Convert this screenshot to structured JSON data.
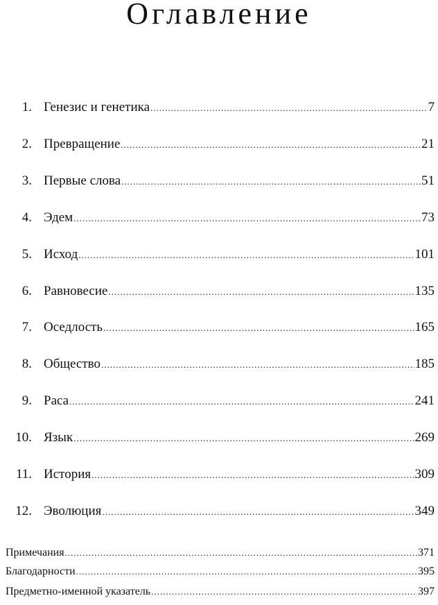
{
  "title": "Оглавление",
  "chapters": [
    {
      "num": "1.",
      "title": "Генезис и генетика",
      "page": "7"
    },
    {
      "num": "2.",
      "title": "Превращение",
      "page": "21"
    },
    {
      "num": "3.",
      "title": "Первые слова",
      "page": "51"
    },
    {
      "num": "4.",
      "title": "Эдем",
      "page": "73"
    },
    {
      "num": "5.",
      "title": "Исход",
      "page": "101"
    },
    {
      "num": "6.",
      "title": "Равновесие",
      "page": "135"
    },
    {
      "num": "7.",
      "title": "Оседлость",
      "page": "165"
    },
    {
      "num": "8.",
      "title": "Общество",
      "page": "185"
    },
    {
      "num": "9.",
      "title": "Раса",
      "page": "241"
    },
    {
      "num": "10.",
      "title": "Язык",
      "page": "269"
    },
    {
      "num": "11.",
      "title": "История",
      "page": "309"
    },
    {
      "num": "12.",
      "title": "Эволюция",
      "page": "349"
    }
  ],
  "back_matter": [
    {
      "title": "Примечания",
      "page": "371"
    },
    {
      "title": "Благодарности",
      "page": "395"
    },
    {
      "title": "Предметно-именной указатель",
      "page": "397"
    }
  ]
}
